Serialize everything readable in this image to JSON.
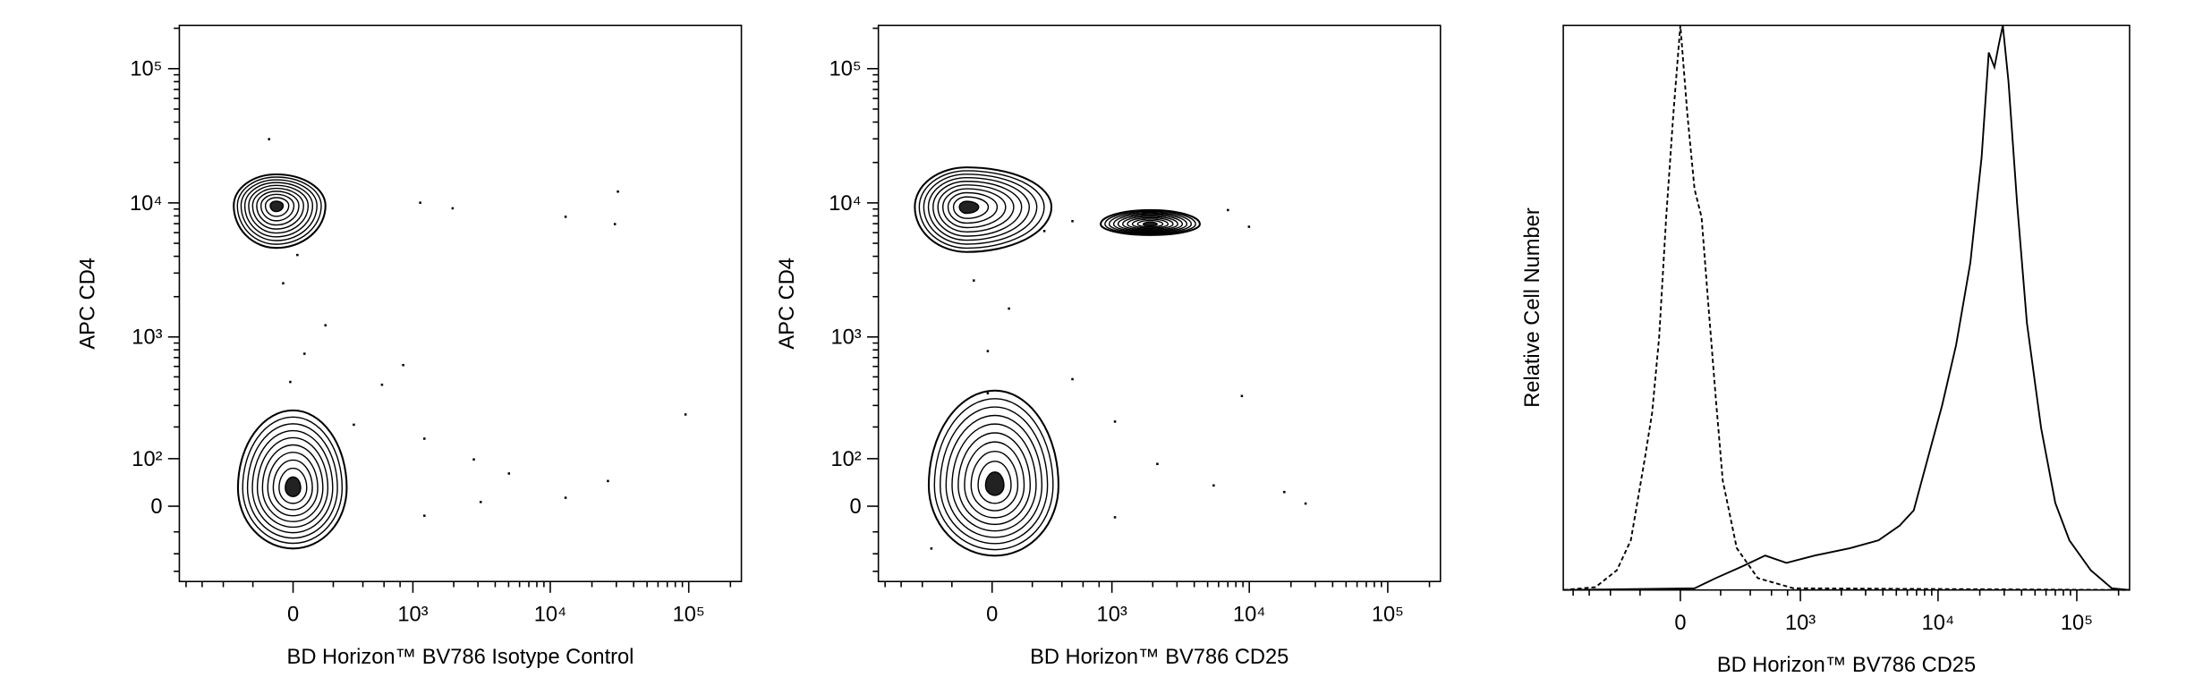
{
  "chart_data": [
    {
      "type": "contour",
      "xlabel": "BD Horizon™ BV786 Isotype Control",
      "ylabel": "APC CD4",
      "xscale": "biexponential",
      "x_linear_width": 278,
      "yscale": "biexponential",
      "y_linear_width": 110,
      "xlim": [
        -900,
        240000
      ],
      "ylim": [
        -185,
        210000
      ],
      "xticks": [
        0,
        {
          "value": 1000,
          "label": "10³"
        },
        {
          "value": 10000,
          "label": "10⁴"
        },
        {
          "value": 100000,
          "label": "10⁵"
        }
      ],
      "yticks": [
        0,
        {
          "value": 100,
          "label": "10²"
        },
        {
          "value": 1000,
          "label": "10³"
        },
        {
          "value": 10000,
          "label": "10⁴"
        },
        {
          "value": 100000,
          "label": "10⁵"
        }
      ],
      "xminorticks": [
        -800,
        -600,
        -400,
        -200,
        200,
        400,
        600,
        800,
        2000,
        3000,
        4000,
        5000,
        6000,
        7000,
        8000,
        9000,
        20000,
        30000,
        40000,
        50000,
        60000,
        70000,
        80000,
        90000,
        200000
      ],
      "yminorticks": [
        -150,
        -100,
        -50,
        200,
        300,
        400,
        500,
        600,
        700,
        800,
        900,
        2000,
        3000,
        4000,
        5000,
        6000,
        7000,
        8000,
        9000,
        20000,
        30000,
        40000,
        50000,
        60000,
        70000,
        80000,
        90000,
        200000
      ],
      "color": "#000000",
      "populations": [
        {
          "x": -79,
          "y": 9550,
          "x_range": [
            -321,
            157
          ],
          "y_range": [
            4620,
            16300
          ]
        },
        {
          "x": 0,
          "y": 35,
          "x_range": [
            -292,
            282
          ],
          "y_range": [
            -87,
            274
          ]
        }
      ],
      "events": {
        "x": [
          1134,
          1963,
          12900,
          29300,
          30800,
          845,
          578,
          1218,
          2800,
          5030,
          12900,
          26100,
          94800,
          331,
          157,
          53,
          -46,
          20,
          -13,
          -114,
          1218,
          3140
        ],
        "y": [
          10030,
          9110,
          7880,
          6950,
          12140,
          614,
          435,
          158,
          98,
          65,
          16,
          49,
          254,
          209,
          1223,
          748,
          2517,
          4092,
          457,
          29830,
          -18,
          8
        ]
      }
    },
    {
      "type": "contour",
      "xlabel": "BD Horizon™ BV786 CD25",
      "ylabel": "APC CD4",
      "xscale": "biexponential",
      "x_linear_width": 278,
      "yscale": "biexponential",
      "y_linear_width": 110,
      "xlim": [
        -900,
        240000
      ],
      "ylim": [
        -185,
        210000
      ],
      "xticks": [
        0,
        {
          "value": 1000,
          "label": "10³"
        },
        {
          "value": 10000,
          "label": "10⁴"
        },
        {
          "value": 100000,
          "label": "10⁵"
        }
      ],
      "yticks": [
        0,
        {
          "value": 100,
          "label": "10²"
        },
        {
          "value": 1000,
          "label": "10³"
        },
        {
          "value": 10000,
          "label": "10⁴"
        },
        {
          "value": 100000,
          "label": "10⁵"
        }
      ],
      "xminorticks": [
        -800,
        -600,
        -400,
        -200,
        200,
        400,
        600,
        800,
        2000,
        3000,
        4000,
        5000,
        6000,
        7000,
        8000,
        9000,
        20000,
        30000,
        40000,
        50000,
        60000,
        70000,
        80000,
        90000,
        200000
      ],
      "yminorticks": [
        -150,
        -100,
        -50,
        200,
        300,
        400,
        500,
        600,
        700,
        800,
        900,
        2000,
        3000,
        4000,
        5000,
        6000,
        7000,
        8000,
        9000,
        20000,
        30000,
        40000,
        50000,
        60000,
        70000,
        80000,
        90000,
        200000
      ],
      "color": "#000000",
      "populations": [
        {
          "x": -121,
          "y": 9330,
          "x_range": [
            -464,
            321
          ],
          "y_range": [
            4310,
            18390
          ]
        },
        {
          "x": 13,
          "y": 40,
          "x_range": [
            -350,
            373
          ],
          "y_range": [
            -105,
            392
          ]
        },
        {
          "x": 1915,
          "y": 6950,
          "x_range": [
            823,
            4390
          ],
          "y_range": [
            5760,
            8840
          ]
        }
      ],
      "events": {
        "x": [
          273,
          492,
          7010,
          9950,
          8840,
          1054,
          5530,
          17900,
          25500,
          1054,
          492,
          -20,
          -86,
          79,
          -20,
          -331,
          2160
        ],
        "y": [
          6170,
          7310,
          8840,
          6640,
          356,
          222,
          40,
          27,
          5,
          -21,
          480,
          783,
          2640,
          1630,
          374,
          -87,
          87
        ]
      }
    },
    {
      "type": "line",
      "xlabel": "BD Horizon™ BV786 CD25",
      "ylabel": "Relative Cell Number",
      "xscale": "biexponential",
      "x_linear_width": 278,
      "yscale": "linear",
      "xlim": [
        -950,
        240000
      ],
      "ylim": [
        0,
        100
      ],
      "xticks": [
        0,
        {
          "value": 1000,
          "label": "10³"
        },
        {
          "value": 10000,
          "label": "10⁴"
        },
        {
          "value": 100000,
          "label": "10⁵"
        }
      ],
      "xminorticks": [
        -800,
        -600,
        -400,
        -200,
        200,
        400,
        600,
        800,
        2000,
        3000,
        4000,
        5000,
        6000,
        7000,
        8000,
        9000,
        20000,
        30000,
        40000,
        50000,
        60000,
        70000,
        80000,
        90000,
        200000
      ],
      "series": [
        {
          "color": "#000000",
          "style": "dashed",
          "x": [
            -950,
            -534,
            -350,
            -255,
            -173,
            -135,
            -100,
            -66,
            -33,
            0,
            33,
            66,
            100,
            135,
            173,
            212,
            300,
            464,
            887,
            240000
          ],
          "values": [
            0,
            0.5,
            3.5,
            8.8,
            23.4,
            31.4,
            44.7,
            66,
            84,
            100,
            84,
            71,
            66,
            50,
            34,
            19.4,
            7.4,
            2.1,
            0.3,
            0
          ]
        },
        {
          "color": "#000000",
          "style": "solid",
          "x": [
            -950,
            66,
            173,
            350,
            534,
            784,
            1276,
            2318,
            3720,
            5280,
            6680,
            8450,
            10700,
            13500,
            17100,
            20600,
            23200,
            25500,
            27350,
            29300,
            32200,
            37100,
            43700,
            55300,
            70000,
            88400,
            126000,
            179000,
            240000
          ],
          "values": [
            0,
            0.3,
            2.1,
            4.3,
            6.1,
            4.8,
            6.1,
            7.4,
            8.8,
            11.4,
            14.1,
            23.4,
            32.7,
            43.4,
            58,
            76.6,
            95.2,
            92.6,
            96.5,
            100,
            90,
            68.6,
            47.3,
            28.7,
            15.4,
            8.8,
            3.5,
            0.3,
            0
          ]
        }
      ]
    }
  ]
}
